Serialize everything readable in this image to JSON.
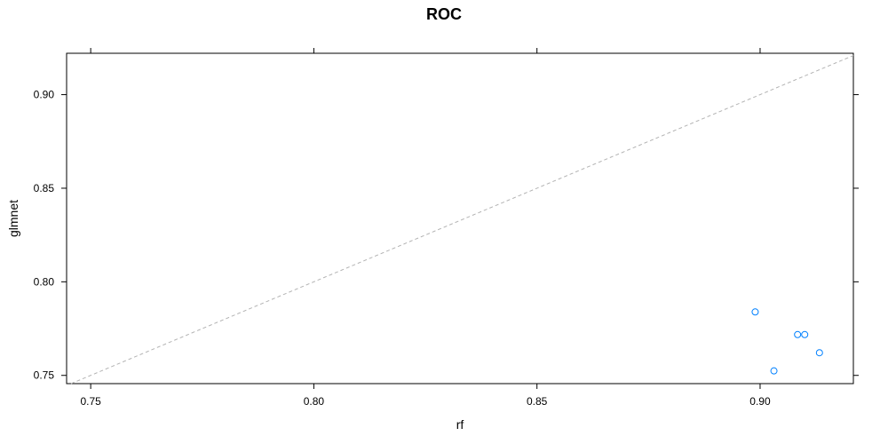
{
  "chart_data": {
    "type": "scatter",
    "title": "ROC",
    "xlabel": "rf",
    "ylabel": "glmnet",
    "xlim": [
      0.7446,
      0.9209
    ],
    "ylim": [
      0.7456,
      0.9221
    ],
    "x_ticks": [
      "0.75",
      "0.80",
      "0.85",
      "0.90"
    ],
    "y_ticks": [
      "0.75",
      "0.80",
      "0.85",
      "0.90"
    ],
    "x_tick_values": [
      0.75,
      0.8,
      0.85,
      0.9
    ],
    "y_tick_values": [
      0.75,
      0.8,
      0.85,
      0.9
    ],
    "grid": false,
    "reference_line": "identity",
    "reference_line_color": "#b3b3b3",
    "point_color": "#0080ff",
    "points": [
      {
        "x": 0.8989,
        "y": 0.7839
      },
      {
        "x": 0.9084,
        "y": 0.7718
      },
      {
        "x": 0.91,
        "y": 0.7718
      },
      {
        "x": 0.9031,
        "y": 0.7524
      },
      {
        "x": 0.9133,
        "y": 0.7621
      }
    ]
  }
}
